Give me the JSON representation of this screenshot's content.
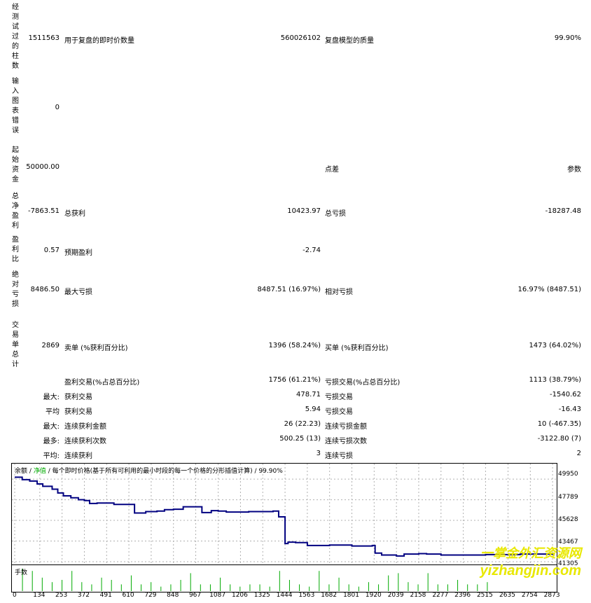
{
  "report": {
    "bars_tested": {
      "label": "经测试过的柱数",
      "value": "1511563"
    },
    "ticks_modelled": {
      "label": "用于复盘的即时价数量",
      "value": "560026102"
    },
    "modelling_quality": {
      "label": "复盘模型的质量",
      "value": "99.90%"
    },
    "mismatched_errors": {
      "label": "输入图表错误",
      "value": "0"
    },
    "initial_deposit": {
      "label": "起始资金",
      "value": "50000.00"
    },
    "spread": {
      "label": "点差",
      "value": "参数"
    },
    "total_net_profit": {
      "label": "总净盈利",
      "value": "-7863.51"
    },
    "gross_profit": {
      "label": "总获利",
      "value": "10423.97"
    },
    "gross_loss": {
      "label": "总亏损",
      "value": "-18287.48"
    },
    "profit_factor": {
      "label": "盈利比",
      "value": "0.57"
    },
    "expected_payoff": {
      "label": "预期盈利",
      "value": "-2.74"
    },
    "absolute_drawdown": {
      "label": "绝对亏损",
      "value": "8486.50"
    },
    "maximal_drawdown": {
      "label": "最大亏损",
      "value": "8487.51 (16.97%)"
    },
    "relative_drawdown": {
      "label": "相对亏损",
      "value": "16.97% (8487.51)"
    },
    "total_trades": {
      "label": "交易单总计",
      "value": "2869"
    },
    "short_positions": {
      "label": "卖单 (%获利百分比)",
      "value": "1396 (58.24%)"
    },
    "long_positions": {
      "label": "买单 (%获利百分比)",
      "value": "1473 (64.02%)"
    },
    "profit_trades": {
      "label": "盈利交易(%占总百分比)",
      "value": "1756 (61.21%)"
    },
    "loss_trades": {
      "label": "亏损交易(%占总百分比)",
      "value": "1113 (38.79%)"
    },
    "largest_prefix": "最大:",
    "largest_profit": {
      "label": "获利交易",
      "value": "478.71"
    },
    "largest_loss": {
      "label": "亏损交易",
      "value": "-1540.62"
    },
    "average_prefix": "平均",
    "average_profit": {
      "label": "获利交易",
      "value": "5.94"
    },
    "average_loss": {
      "label": "亏损交易",
      "value": "-16.43"
    },
    "max_prefix": "最大:",
    "max_consec_wins": {
      "label": "连续获利金额",
      "value": "26 (22.23)"
    },
    "max_consec_losses": {
      "label": "连续亏损金额",
      "value": "10 (-467.35)"
    },
    "maximal_prefix": "最多:",
    "max_consec_profit": {
      "label": "连续获利次数",
      "value": "500.25 (13)"
    },
    "max_consec_loss": {
      "label": "连续亏损次数",
      "value": "-3122.80 (7)"
    },
    "avg_prefix": "平均:",
    "avg_consec_wins": {
      "label": "连续获利",
      "value": "3"
    },
    "avg_consec_losses": {
      "label": "连续亏损",
      "value": "2"
    }
  },
  "chart_header": {
    "balance": "余额",
    "sep1": "/",
    "equity": "净值",
    "sep2": "/",
    "description": "每个即时价格(基于所有可利用的最小时段的每一个价格的分形插值计算)",
    "sep3": "/",
    "quality": "99.90%"
  },
  "volume_label": "手数",
  "watermark": {
    "line1": "一掌金外汇资源网",
    "line2": "yizhangjin.com"
  },
  "colors": {
    "balance_line": "#000080",
    "volume_bar": "#00aa00",
    "grid": "#b0b0b0",
    "watermark": "#e8e800"
  },
  "chart_data": {
    "type": "line",
    "title": "",
    "xlabel": "",
    "ylabel": "",
    "y_ticks": [
      "49950",
      "47789",
      "45628",
      "43467",
      "41305"
    ],
    "x_ticks": [
      "0",
      "134",
      "253",
      "372",
      "491",
      "610",
      "729",
      "848",
      "967",
      "1087",
      "1206",
      "1325",
      "1444",
      "1563",
      "1682",
      "1801",
      "1920",
      "2039",
      "2158",
      "2277",
      "2396",
      "2515",
      "2635",
      "2754",
      "2873"
    ],
    "ylim": [
      41305,
      50400
    ],
    "xlim": [
      0,
      2880
    ],
    "series": [
      {
        "name": "余额",
        "x": [
          0,
          40,
          80,
          120,
          150,
          200,
          230,
          260,
          300,
          340,
          372,
          400,
          440,
          491,
          530,
          580,
          610,
          640,
          700,
          760,
          800,
          848,
          900,
          967,
          1000,
          1050,
          1087,
          1130,
          1206,
          1250,
          1300,
          1380,
          1410,
          1444,
          1460,
          1500,
          1563,
          1620,
          1682,
          1740,
          1801,
          1870,
          1910,
          1925,
          1960,
          2010,
          2039,
          2080,
          2158,
          2200,
          2277,
          2330,
          2396,
          2460,
          2515,
          2580,
          2635,
          2700,
          2754,
          2800,
          2873
        ],
        "y": [
          50150,
          49900,
          49750,
          49450,
          49200,
          48900,
          48500,
          48200,
          48000,
          47800,
          47700,
          47400,
          47450,
          47450,
          47300,
          47300,
          47300,
          46400,
          46550,
          46600,
          46750,
          46800,
          47050,
          47050,
          46450,
          46650,
          46600,
          46500,
          46500,
          46550,
          46550,
          46600,
          46000,
          43200,
          43350,
          43300,
          43000,
          43000,
          43050,
          43050,
          42950,
          42950,
          43000,
          42200,
          42000,
          42000,
          41900,
          42100,
          42150,
          42100,
          42000,
          42000,
          42000,
          42000,
          42050,
          42050,
          42050,
          42100,
          42100,
          42100,
          42200
        ]
      }
    ],
    "volume": [
      1.0,
      0.9,
      0.6,
      0.4,
      0.5,
      0.9,
      0.4,
      0.3,
      0.6,
      0.5,
      0.3,
      0.7,
      0.3,
      0.4,
      0.2,
      0.3,
      0.5,
      0.8,
      0.3,
      0.3,
      0.6,
      0.3,
      0.2,
      0.3,
      0.3,
      0.2,
      0.9,
      0.5,
      0.3,
      0.2,
      0.9,
      0.3,
      0.6,
      0.3,
      0.2,
      0.4,
      0.3,
      0.7,
      0.8,
      0.4,
      0.3,
      0.8,
      0.3,
      0.3,
      0.5,
      0.3,
      0.3,
      0.4
    ]
  }
}
